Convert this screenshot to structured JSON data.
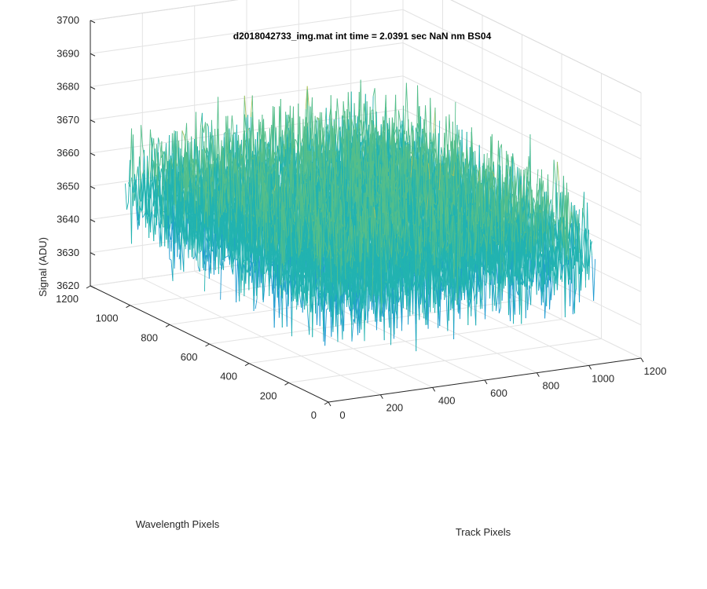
{
  "chart_data": {
    "type": "surface",
    "title": "d2018042733_img.mat int time = 2.0391 sec  NaN nm BS04",
    "xlabel": "Track Pixels",
    "ylabel": "Wavelength Pixels",
    "zlabel": "Signal (ADU)",
    "xlim": [
      0,
      1200
    ],
    "ylim": [
      0,
      1200
    ],
    "zlim": [
      3620,
      3700
    ],
    "xticks": [
      "0",
      "200",
      "400",
      "600",
      "800",
      "1000",
      "1200"
    ],
    "yticks": [
      "0",
      "200",
      "400",
      "600",
      "800",
      "1000",
      "1200"
    ],
    "zticks": [
      "3620",
      "3630",
      "3640",
      "3650",
      "3660",
      "3670",
      "3680",
      "3690",
      "3700"
    ],
    "data_extent": {
      "x": [
        0,
        1024
      ],
      "y": [
        0,
        1024
      ]
    },
    "signal_mean": 3655,
    "signal_range": [
      3620,
      3700
    ],
    "colormap": "parula",
    "colors": [
      "#0072BD",
      "#1F9BD1",
      "#22B3B0",
      "#55BE8A",
      "#A9C25A",
      "#EDB73B"
    ],
    "grid": true,
    "view": {
      "azimuth": -37.5,
      "elevation": 30
    }
  }
}
